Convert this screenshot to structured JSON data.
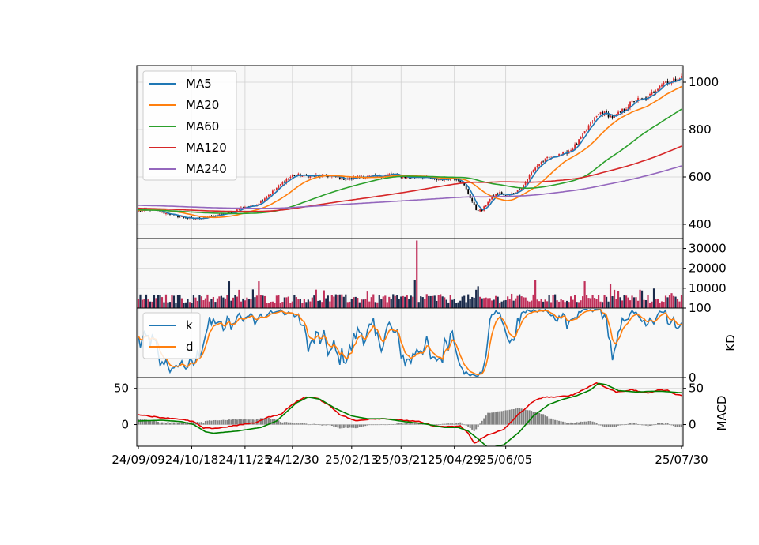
{
  "colors": {
    "MA5": "#1f77b4",
    "MA20": "#ff7f0e",
    "MA60": "#2ca02c",
    "MA120": "#d62728",
    "MA240": "#9467bd",
    "k": "#1f77b4",
    "d": "#ff7f0e",
    "dif": "#e00000",
    "dea": "#008000",
    "up": "#d62728",
    "down": "#000000",
    "hist": "#808080",
    "grid": "#d0d0d0",
    "panel_bg": "#f8f8f8"
  },
  "chart_data": [
    {
      "type": "candlestick",
      "panel": "price",
      "title": "",
      "ylim": [
        340,
        1070
      ],
      "yticks": [
        400,
        600,
        800,
        1000
      ],
      "grid": true,
      "legend_position": "top-left",
      "x_ticks": [
        "24/09/09",
        "24/10/18",
        "24/11/25",
        "24/12/30",
        "25/02/13",
        "25/03/21",
        "25/04/29",
        "25/06/05",
        "25/07/30"
      ],
      "price_anchors": [
        [
          0,
          455
        ],
        [
          3,
          460
        ],
        [
          6,
          462
        ],
        [
          9,
          458
        ],
        [
          12,
          450
        ],
        [
          15,
          444
        ],
        [
          18,
          438
        ],
        [
          21,
          432
        ],
        [
          24,
          428
        ],
        [
          27,
          423
        ],
        [
          30,
          425
        ],
        [
          33,
          428
        ],
        [
          36,
          432
        ],
        [
          39,
          437
        ],
        [
          42,
          441
        ],
        [
          45,
          445
        ],
        [
          48,
          450
        ],
        [
          51,
          466
        ],
        [
          54,
          475
        ],
        [
          57,
          476
        ],
        [
          60,
          485
        ],
        [
          63,
          505
        ],
        [
          66,
          525
        ],
        [
          69,
          545
        ],
        [
          72,
          568
        ],
        [
          75,
          590
        ],
        [
          78,
          605
        ],
        [
          81,
          608
        ],
        [
          84,
          604
        ],
        [
          87,
          604
        ],
        [
          90,
          606
        ],
        [
          93,
          603
        ],
        [
          96,
          604
        ],
        [
          99,
          601
        ],
        [
          102,
          596
        ],
        [
          105,
          591
        ],
        [
          108,
          594
        ],
        [
          111,
          600
        ],
        [
          114,
          601
        ],
        [
          117,
          601
        ],
        [
          120,
          601
        ],
        [
          123,
          604
        ],
        [
          126,
          610
        ],
        [
          129,
          610
        ],
        [
          132,
          605
        ],
        [
          135,
          600
        ],
        [
          138,
          598
        ],
        [
          141,
          601
        ],
        [
          144,
          600
        ],
        [
          147,
          594
        ],
        [
          150,
          589
        ],
        [
          153,
          589
        ],
        [
          156,
          593
        ],
        [
          159,
          597
        ],
        [
          162,
          590
        ],
        [
          165,
          562
        ],
        [
          168,
          513
        ],
        [
          171,
          462
        ],
        [
          174,
          458
        ],
        [
          177,
          497
        ],
        [
          180,
          522
        ],
        [
          183,
          533
        ],
        [
          186,
          519
        ],
        [
          189,
          529
        ],
        [
          192,
          543
        ],
        [
          195,
          566
        ],
        [
          198,
          606
        ],
        [
          201,
          641
        ],
        [
          204,
          662
        ],
        [
          207,
          677
        ],
        [
          210,
          684
        ],
        [
          213,
          698
        ],
        [
          216,
          700
        ],
        [
          219,
          715
        ],
        [
          222,
          740
        ],
        [
          225,
          775
        ],
        [
          228,
          815
        ],
        [
          231,
          847
        ],
        [
          234,
          872
        ],
        [
          237,
          866
        ],
        [
          240,
          851
        ],
        [
          243,
          866
        ],
        [
          246,
          886
        ],
        [
          249,
          909
        ],
        [
          252,
          927
        ],
        [
          255,
          925
        ],
        [
          258,
          935
        ],
        [
          261,
          960
        ],
        [
          264,
          990
        ],
        [
          267,
          1003
        ],
        [
          270,
          1000
        ],
        [
          273,
          1020
        ],
        [
          275,
          1020
        ]
      ],
      "series": [
        {
          "name": "MA5"
        },
        {
          "name": "MA20"
        },
        {
          "name": "MA60"
        },
        {
          "name": "MA120"
        },
        {
          "name": "MA240"
        }
      ]
    },
    {
      "type": "bar",
      "panel": "volume",
      "ylim": [
        0,
        35000
      ],
      "yticks": [
        10000,
        20000,
        30000
      ],
      "grid": true,
      "spikes": [
        [
          141,
          34000
        ],
        [
          140,
          14000
        ],
        [
          61,
          13500
        ],
        [
          46,
          13500
        ],
        [
          172,
          11000
        ],
        [
          201,
          14000
        ],
        [
          226,
          13500
        ],
        [
          239,
          12000
        ]
      ]
    },
    {
      "type": "line",
      "panel": "kd",
      "ylabel": "KD",
      "ylim": [
        0,
        100
      ],
      "yticks": [
        0,
        100
      ],
      "grid": true,
      "legend_position": "top-left",
      "series": [
        {
          "name": "k"
        },
        {
          "name": "d"
        }
      ]
    },
    {
      "type": "line",
      "panel": "macd",
      "ylabel": "MACD",
      "ylim": [
        -30,
        65
      ],
      "yticks_left": [
        0,
        50
      ],
      "yticks_right": [
        0,
        50
      ],
      "grid": true,
      "dif_anchors": [
        [
          0,
          14
        ],
        [
          10,
          10
        ],
        [
          20,
          8
        ],
        [
          28,
          4
        ],
        [
          33,
          -5
        ],
        [
          40,
          -5
        ],
        [
          60,
          3
        ],
        [
          65,
          10
        ],
        [
          72,
          14
        ],
        [
          78,
          28
        ],
        [
          84,
          38
        ],
        [
          90,
          37
        ],
        [
          96,
          28
        ],
        [
          102,
          14
        ],
        [
          110,
          5
        ],
        [
          118,
          8
        ],
        [
          126,
          8
        ],
        [
          134,
          6
        ],
        [
          142,
          4
        ],
        [
          150,
          -2
        ],
        [
          158,
          -3
        ],
        [
          163,
          -2
        ],
        [
          167,
          -12
        ],
        [
          170,
          -26
        ],
        [
          177,
          -14
        ],
        [
          185,
          -7
        ],
        [
          192,
          13
        ],
        [
          200,
          32
        ],
        [
          205,
          38
        ],
        [
          212,
          38
        ],
        [
          220,
          41
        ],
        [
          228,
          52
        ],
        [
          232,
          58
        ],
        [
          236,
          52
        ],
        [
          242,
          45
        ],
        [
          250,
          48
        ],
        [
          258,
          43
        ],
        [
          263,
          48
        ],
        [
          268,
          47
        ],
        [
          272,
          42
        ],
        [
          275,
          40
        ]
      ],
      "dea_anchors": [
        [
          0,
          5
        ],
        [
          12,
          6
        ],
        [
          22,
          4
        ],
        [
          28,
          0
        ],
        [
          34,
          -10
        ],
        [
          38,
          -12
        ],
        [
          50,
          -9
        ],
        [
          62,
          -4
        ],
        [
          70,
          5
        ],
        [
          80,
          30
        ],
        [
          86,
          38
        ],
        [
          92,
          35
        ],
        [
          100,
          22
        ],
        [
          108,
          12
        ],
        [
          116,
          8
        ],
        [
          125,
          8
        ],
        [
          135,
          4
        ],
        [
          145,
          1
        ],
        [
          155,
          -4
        ],
        [
          162,
          -4
        ],
        [
          167,
          -9
        ],
        [
          173,
          -22
        ],
        [
          177,
          -32
        ],
        [
          185,
          -28
        ],
        [
          193,
          -10
        ],
        [
          200,
          12
        ],
        [
          208,
          28
        ],
        [
          215,
          35
        ],
        [
          222,
          40
        ],
        [
          229,
          48
        ],
        [
          233,
          57
        ],
        [
          237,
          55
        ],
        [
          243,
          47
        ],
        [
          252,
          45
        ],
        [
          260,
          46
        ],
        [
          265,
          46
        ],
        [
          270,
          45
        ],
        [
          275,
          44
        ]
      ]
    }
  ]
}
